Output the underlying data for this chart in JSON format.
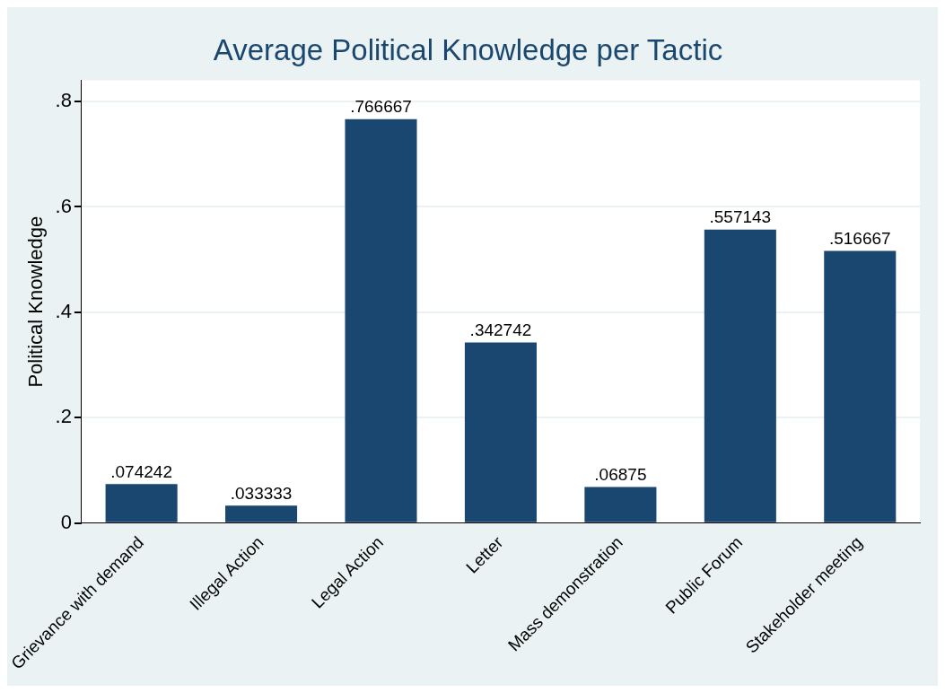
{
  "chart_data": {
    "type": "bar",
    "title": "Average Political Knowledge per Tactic",
    "ylabel": "Political Knowledge",
    "categories": [
      "Grievance with demand",
      "Illegal Action",
      "Legal Action",
      "Letter",
      "Mass demonstration",
      "Public Forum",
      "Stakeholder meeting"
    ],
    "values": [
      0.074242,
      0.033333,
      0.766667,
      0.342742,
      0.06875,
      0.557143,
      0.516667
    ],
    "value_labels": [
      ".074242",
      ".033333",
      ".766667",
      ".342742",
      ".06875",
      ".557143",
      ".516667"
    ],
    "color": "#1a476f",
    "ylim": [
      0,
      0.84
    ],
    "yticks": [
      0,
      {
        "value": 0.2,
        "label": ".2"
      },
      {
        "value": 0.4,
        "label": ".4"
      },
      {
        "value": 0.6,
        "label": ".6"
      },
      {
        "value": 0.8,
        "label": ".8"
      }
    ],
    "grid": "y",
    "legend": false
  }
}
